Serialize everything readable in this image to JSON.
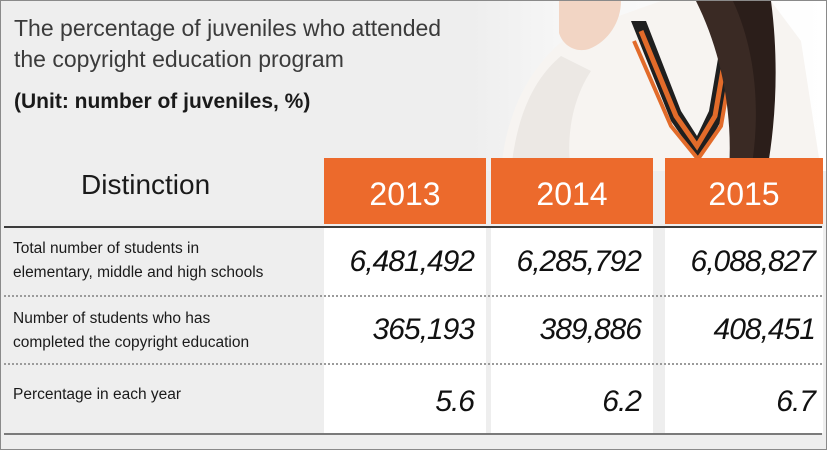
{
  "title_line1": "The percentage of juveniles who attended",
  "title_line2": "the copyright education program",
  "unit": "(Unit: number of juveniles, %)",
  "header_label": "Distinction",
  "years": [
    "2013",
    "2014",
    "2015"
  ],
  "rows": [
    {
      "label_line1": "Total number of students in",
      "label_line2": "elementary, middle and high schools",
      "values": [
        "6,481,492",
        "6,285,792",
        "6,088,827"
      ]
    },
    {
      "label_line1": "Number of students who has",
      "label_line2": "completed the copyright education",
      "values": [
        "365,193",
        "389,886",
        "408,451"
      ]
    },
    {
      "label_line1": "Percentage in each year",
      "label_line2": "",
      "values": [
        "5.6",
        "6.2",
        "6.7"
      ]
    }
  ],
  "colors": {
    "header_orange": "#ec6a2c",
    "panel_gray": "#eeeeee"
  },
  "chart_data": {
    "type": "table",
    "title": "The percentage of juveniles who attended the copyright education program",
    "subtitle": "(Unit: number of juveniles, %)",
    "columns": [
      "Distinction",
      "2013",
      "2014",
      "2015"
    ],
    "rows": [
      [
        "Total number of students in elementary, middle and high schools",
        6481492,
        6285792,
        6088827
      ],
      [
        "Number of students who has completed the copyright education",
        365193,
        389886,
        408451
      ],
      [
        "Percentage in each year",
        5.6,
        6.2,
        6.7
      ]
    ]
  }
}
